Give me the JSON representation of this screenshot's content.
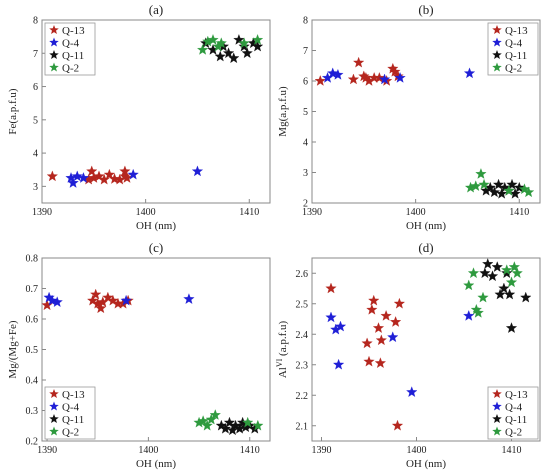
{
  "chart_data": [
    {
      "type": "scatter",
      "panel_label": "(a)",
      "xlabel": "OH (nm)",
      "ylabel": "Fe(a.p.f.u)",
      "xlim": [
        1390,
        1412
      ],
      "ylim": [
        2.5,
        8.0
      ],
      "xticks": [
        1390,
        1400,
        1410
      ],
      "yticks": [
        3,
        4,
        5,
        6,
        7,
        8
      ],
      "legend_position": "top-left",
      "series": [
        {
          "name": "Q-13",
          "color": "#b5261e",
          "points": [
            [
              1391,
              3.3
            ],
            [
              1394.5,
              3.2
            ],
            [
              1395,
              3.25
            ],
            [
              1394.8,
              3.45
            ],
            [
              1395.5,
              3.3
            ],
            [
              1396,
              3.2
            ],
            [
              1396.5,
              3.35
            ],
            [
              1397,
              3.22
            ],
            [
              1397.5,
              3.2
            ],
            [
              1398,
              3.3
            ],
            [
              1398,
              3.45
            ],
            [
              1398.2,
              3.25
            ]
          ]
        },
        {
          "name": "Q-4",
          "color": "#1f1fd6",
          "points": [
            [
              1392.8,
              3.25
            ],
            [
              1393,
              3.1
            ],
            [
              1393.4,
              3.3
            ],
            [
              1394,
              3.25
            ],
            [
              1398.8,
              3.35
            ],
            [
              1405,
              3.45
            ]
          ]
        },
        {
          "name": "Q-11",
          "color": "#111111",
          "points": [
            [
              1405.8,
              7.3
            ],
            [
              1406.5,
              7.1
            ],
            [
              1407.2,
              6.9
            ],
            [
              1407.5,
              7.2
            ],
            [
              1408,
              7.0
            ],
            [
              1408.5,
              6.85
            ],
            [
              1409,
              7.4
            ],
            [
              1409.5,
              7.2
            ],
            [
              1409.8,
              7.0
            ],
            [
              1410.4,
              7.3
            ],
            [
              1410.8,
              7.2
            ]
          ]
        },
        {
          "name": "Q-2",
          "color": "#2e9a3e",
          "points": [
            [
              1405.5,
              7.1
            ],
            [
              1406,
              7.35
            ],
            [
              1406.5,
              7.4
            ],
            [
              1407,
              7.2
            ],
            [
              1407.3,
              7.3
            ],
            [
              1409.5,
              7.3
            ],
            [
              1410.8,
              7.4
            ]
          ]
        }
      ]
    },
    {
      "type": "scatter",
      "panel_label": "(b)",
      "xlabel": "OH (nm)",
      "ylabel": "Mg(a.p.f.u)",
      "xlim": [
        1390,
        1412
      ],
      "ylim": [
        2.0,
        8.0
      ],
      "xticks": [
        1390,
        1400,
        1410
      ],
      "yticks": [
        2,
        3,
        4,
        5,
        6,
        7,
        8
      ],
      "legend_position": "top-right",
      "series": [
        {
          "name": "Q-13",
          "color": "#b5261e",
          "points": [
            [
              1390.8,
              6.0
            ],
            [
              1394,
              6.05
            ],
            [
              1394.5,
              6.6
            ],
            [
              1395,
              6.15
            ],
            [
              1395.2,
              6.1
            ],
            [
              1395.5,
              6.0
            ],
            [
              1396,
              6.1
            ],
            [
              1396.5,
              6.1
            ],
            [
              1397.2,
              6.0
            ],
            [
              1397.8,
              6.4
            ],
            [
              1398,
              6.3
            ],
            [
              1398.3,
              6.15
            ]
          ]
        },
        {
          "name": "Q-4",
          "color": "#1f1fd6",
          "points": [
            [
              1391.5,
              6.1
            ],
            [
              1392,
              6.25
            ],
            [
              1392.5,
              6.2
            ],
            [
              1397,
              6.05
            ],
            [
              1398.5,
              6.1
            ],
            [
              1405.2,
              6.25
            ]
          ]
        },
        {
          "name": "Q-11",
          "color": "#111111",
          "points": [
            [
              1406.8,
              2.4
            ],
            [
              1407.2,
              2.5
            ],
            [
              1407.6,
              2.35
            ],
            [
              1408,
              2.6
            ],
            [
              1408.3,
              2.3
            ],
            [
              1408.6,
              2.5
            ],
            [
              1409,
              2.4
            ],
            [
              1409.3,
              2.6
            ],
            [
              1409.6,
              2.3
            ],
            [
              1410,
              2.5
            ]
          ]
        },
        {
          "name": "Q-2",
          "color": "#2e9a3e",
          "points": [
            [
              1405.3,
              2.5
            ],
            [
              1405.8,
              2.55
            ],
            [
              1406.3,
              2.95
            ],
            [
              1406.6,
              2.6
            ],
            [
              1409,
              2.4
            ],
            [
              1410.5,
              2.45
            ],
            [
              1410.9,
              2.35
            ]
          ]
        }
      ]
    },
    {
      "type": "scatter",
      "panel_label": "(c)",
      "xlabel": "OH (nm)",
      "ylabel": "Mg/(Mg+Fe)",
      "xlim": [
        1389.5,
        1412
      ],
      "ylim": [
        0.2,
        0.8
      ],
      "xticks": [
        1390,
        1400,
        1410
      ],
      "yticks": [
        0.2,
        0.3,
        0.4,
        0.5,
        0.6,
        0.7,
        0.8
      ],
      "legend_position": "bottom-left",
      "series": [
        {
          "name": "Q-13",
          "color": "#b5261e",
          "points": [
            [
              1390,
              0.645
            ],
            [
              1394.5,
              0.66
            ],
            [
              1394.8,
              0.68
            ],
            [
              1395,
              0.65
            ],
            [
              1395.3,
              0.635
            ],
            [
              1395.5,
              0.655
            ],
            [
              1396,
              0.67
            ],
            [
              1396.5,
              0.66
            ],
            [
              1397,
              0.65
            ],
            [
              1397.5,
              0.65
            ],
            [
              1398,
              0.66
            ]
          ]
        },
        {
          "name": "Q-4",
          "color": "#1f1fd6",
          "points": [
            [
              1390.2,
              0.67
            ],
            [
              1390.5,
              0.66
            ],
            [
              1391,
              0.655
            ],
            [
              1397.8,
              0.66
            ],
            [
              1404,
              0.665
            ]
          ]
        },
        {
          "name": "Q-11",
          "color": "#111111",
          "points": [
            [
              1407.2,
              0.25
            ],
            [
              1407.6,
              0.24
            ],
            [
              1408,
              0.26
            ],
            [
              1408.3,
              0.235
            ],
            [
              1408.6,
              0.25
            ],
            [
              1409,
              0.24
            ],
            [
              1409.3,
              0.26
            ],
            [
              1409.6,
              0.245
            ],
            [
              1410,
              0.25
            ],
            [
              1410.5,
              0.24
            ]
          ]
        },
        {
          "name": "Q-2",
          "color": "#2e9a3e",
          "points": [
            [
              1405,
              0.26
            ],
            [
              1405.4,
              0.265
            ],
            [
              1405.8,
              0.25
            ],
            [
              1406.2,
              0.27
            ],
            [
              1406.6,
              0.285
            ],
            [
              1409.8,
              0.26
            ],
            [
              1410.8,
              0.25
            ]
          ]
        }
      ]
    },
    {
      "type": "scatter",
      "panel_label": "(d)",
      "xlabel": "OH (nm)",
      "ylabel": "Al",
      "ylabel_sup": "VI",
      "ylabel_suffix": " (a.p.f.u)",
      "xlim": [
        1389,
        1413
      ],
      "ylim": [
        2.05,
        2.65
      ],
      "xticks": [
        1390,
        1400,
        1410
      ],
      "yticks": [
        2.1,
        2.2,
        2.3,
        2.4,
        2.5,
        2.6
      ],
      "legend_position": "bottom-right",
      "series": [
        {
          "name": "Q-13",
          "color": "#b5261e",
          "points": [
            [
              1391,
              2.55
            ],
            [
              1394.8,
              2.37
            ],
            [
              1395,
              2.31
            ],
            [
              1395.3,
              2.48
            ],
            [
              1395.5,
              2.51
            ],
            [
              1396,
              2.42
            ],
            [
              1396.3,
              2.38
            ],
            [
              1396.8,
              2.46
            ],
            [
              1396.2,
              2.305
            ],
            [
              1397.8,
              2.44
            ],
            [
              1398.2,
              2.5
            ],
            [
              1398,
              2.1
            ]
          ]
        },
        {
          "name": "Q-4",
          "color": "#1f1fd6",
          "points": [
            [
              1391,
              2.455
            ],
            [
              1391.5,
              2.415
            ],
            [
              1392,
              2.425
            ],
            [
              1391.8,
              2.3
            ],
            [
              1397.5,
              2.39
            ],
            [
              1399.5,
              2.21
            ],
            [
              1405.5,
              2.46
            ]
          ]
        },
        {
          "name": "Q-11",
          "color": "#111111",
          "points": [
            [
              1407.2,
              2.6
            ],
            [
              1407.5,
              2.63
            ],
            [
              1408,
              2.59
            ],
            [
              1408.5,
              2.62
            ],
            [
              1408.8,
              2.53
            ],
            [
              1409.2,
              2.55
            ],
            [
              1409.5,
              2.6
            ],
            [
              1409.8,
              2.53
            ],
            [
              1410,
              2.42
            ],
            [
              1411.5,
              2.52
            ]
          ]
        },
        {
          "name": "Q-2",
          "color": "#2e9a3e",
          "points": [
            [
              1405.5,
              2.56
            ],
            [
              1406,
              2.6
            ],
            [
              1406.3,
              2.48
            ],
            [
              1406.5,
              2.47
            ],
            [
              1407,
              2.52
            ],
            [
              1409.5,
              2.61
            ],
            [
              1410,
              2.57
            ],
            [
              1410.3,
              2.62
            ],
            [
              1410.6,
              2.6
            ]
          ]
        }
      ]
    }
  ]
}
